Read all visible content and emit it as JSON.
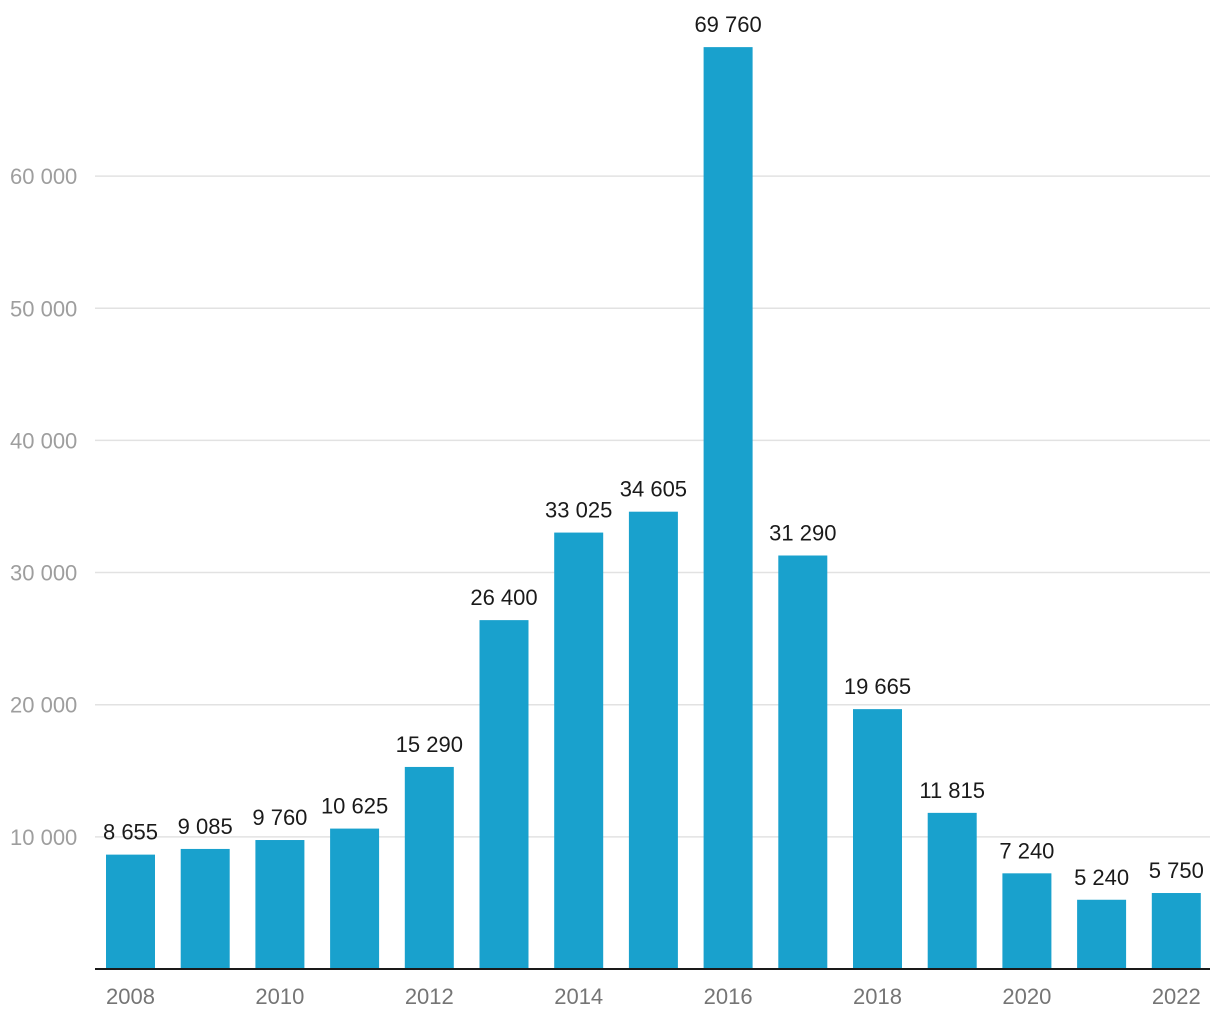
{
  "chart_data": {
    "type": "bar",
    "categories": [
      "2008",
      "2009",
      "2010",
      "2011",
      "2012",
      "2013",
      "2014",
      "2015",
      "2016",
      "2017",
      "2018",
      "2019",
      "2020",
      "2021",
      "2022"
    ],
    "values": [
      8655,
      9085,
      9760,
      10625,
      15290,
      26400,
      33025,
      34605,
      69760,
      31290,
      19665,
      11815,
      7240,
      5240,
      5750
    ],
    "data_labels": [
      "8 655",
      "9 085",
      "9 760",
      "10 625",
      "15 290",
      "26 400",
      "33 025",
      "34 605",
      "69 760",
      "31 290",
      "19 665",
      "11 815",
      "7 240",
      "5 240",
      "5 750"
    ],
    "x_tick_labels": [
      "2008",
      "2010",
      "2012",
      "2014",
      "2016",
      "2018",
      "2020",
      "2022"
    ],
    "y_ticks": [
      10000,
      20000,
      30000,
      40000,
      50000,
      60000
    ],
    "y_tick_labels": [
      "10 000",
      "20 000",
      "30 000",
      "40 000",
      "50 000",
      "60 000"
    ],
    "ylim": [
      0,
      70000
    ],
    "title": "",
    "xlabel": "",
    "ylabel": "",
    "grid": true,
    "bar_color": "#19a1cd",
    "legend": "none"
  }
}
